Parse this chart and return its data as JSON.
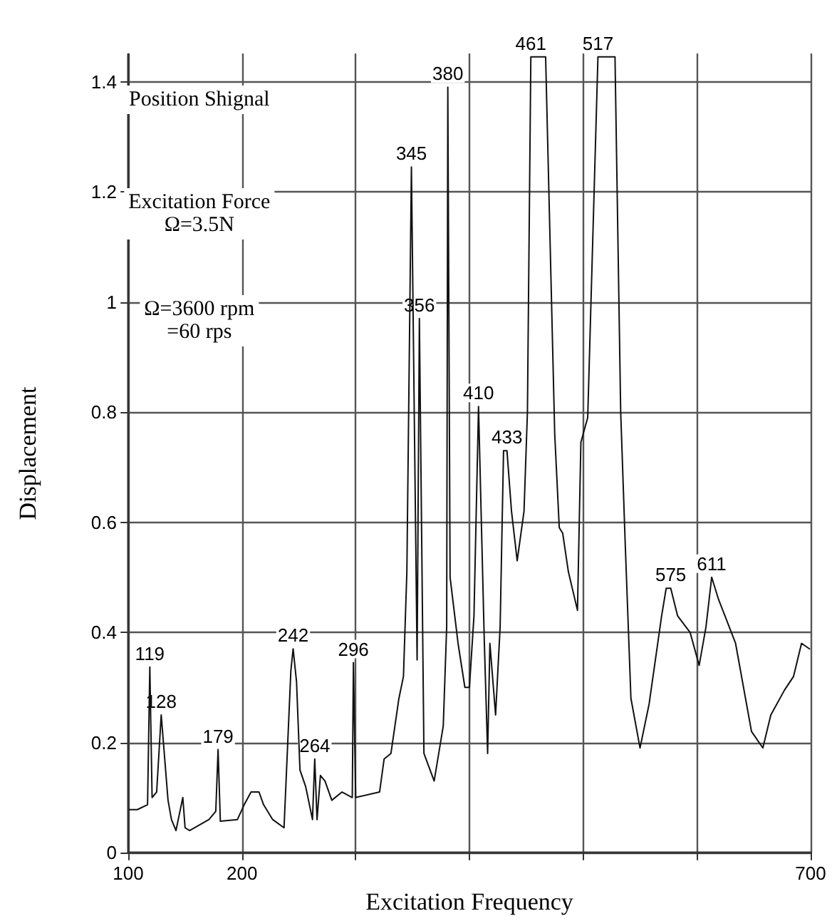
{
  "chart_data": {
    "type": "line",
    "xlabel": "Excitation Frequency",
    "ylabel": "Displacement",
    "xlim": [
      100,
      700
    ],
    "xticks": [
      100,
      200,
      {
        "value": 300,
        "label": null
      },
      {
        "value": 400,
        "label": null
      },
      {
        "value": 500,
        "label": null
      },
      {
        "value": 600,
        "label": null
      },
      700
    ],
    "ylim": [
      0,
      1.45
    ],
    "yticks": [
      0,
      0.2,
      0.4,
      0.6,
      0.8,
      1.0,
      1.2,
      1.4
    ],
    "grid": true,
    "marker": "none",
    "line_style": "solid",
    "series": [
      {
        "color": "#111111",
        "x": [
          101,
          108,
          117,
          119,
          121,
          125,
          129,
          135,
          138,
          142,
          148,
          150,
          154,
          171,
          177,
          179,
          181,
          196,
          202,
          208,
          215,
          219,
          227,
          237,
          243,
          245,
          248,
          251,
          256,
          262,
          264,
          266,
          269,
          273,
          279,
          288,
          297,
          298,
          300,
          321,
          325,
          331,
          338,
          342,
          345,
          349,
          354,
          356,
          360,
          369,
          377,
          380,
          381,
          383,
          390,
          396,
          400,
          404,
          408,
          413,
          416,
          418,
          423,
          427,
          430,
          433,
          437,
          442,
          448,
          451,
          454,
          467,
          475,
          479,
          482,
          487,
          495,
          498,
          504,
          513,
          528,
          533,
          537,
          542,
          550,
          558,
          569,
          573,
          577,
          583,
          594,
          602,
          608,
          613,
          619,
          634,
          648,
          658,
          665,
          677,
          685,
          692,
          699
        ],
        "values": [
          0.078,
          0.078,
          0.087,
          0.337,
          0.1,
          0.11,
          0.25,
          0.095,
          0.06,
          0.04,
          0.1,
          0.045,
          0.04,
          0.06,
          0.075,
          0.187,
          0.057,
          0.06,
          0.087,
          0.11,
          0.11,
          0.087,
          0.06,
          0.045,
          0.33,
          0.37,
          0.31,
          0.15,
          0.12,
          0.06,
          0.17,
          0.06,
          0.14,
          0.13,
          0.095,
          0.11,
          0.1,
          0.345,
          0.1,
          0.11,
          0.17,
          0.18,
          0.28,
          0.32,
          0.51,
          1.245,
          0.35,
          0.97,
          0.18,
          0.13,
          0.23,
          0.41,
          1.39,
          0.5,
          0.38,
          0.3,
          0.3,
          0.43,
          0.81,
          0.39,
          0.18,
          0.38,
          0.25,
          0.41,
          0.73,
          0.73,
          0.62,
          0.53,
          0.62,
          0.8,
          1.445,
          1.445,
          0.76,
          0.59,
          0.58,
          0.51,
          0.44,
          0.745,
          0.79,
          1.445,
          1.445,
          0.8,
          0.56,
          0.28,
          0.19,
          0.27,
          0.43,
          0.48,
          0.48,
          0.43,
          0.4,
          0.34,
          0.41,
          0.5,
          0.46,
          0.38,
          0.22,
          0.19,
          0.25,
          0.295,
          0.32,
          0.38,
          0.37
        ]
      }
    ],
    "annotations": [
      "Position Shignal",
      "Excitation Force\nΩ=3.5N",
      "Ω=3600 rpm\n=60 rps",
      {
        "text": "119",
        "x": 119,
        "y": 0.337
      },
      {
        "text": "128",
        "x": 129,
        "y": 0.25
      },
      {
        "text": "179",
        "x": 179,
        "y": 0.187
      },
      {
        "text": "242",
        "x": 245,
        "y": 0.37
      },
      {
        "text": "264",
        "x": 264,
        "y": 0.17
      },
      {
        "text": "296",
        "x": 298,
        "y": 0.345
      },
      {
        "text": "345",
        "x": 349,
        "y": 1.245
      },
      {
        "text": "356",
        "x": 356,
        "y": 0.97
      },
      {
        "text": "380",
        "x": 381,
        "y": 1.39
      },
      {
        "text": "410",
        "x": 408,
        "y": 0.81
      },
      {
        "text": "433",
        "x": 433,
        "y": 0.73
      },
      {
        "text": "461",
        "x": 454,
        "y": 1.445
      },
      {
        "text": "517",
        "x": 513,
        "y": 1.445
      },
      {
        "text": "575",
        "x": 577,
        "y": 0.48
      },
      {
        "text": "611",
        "x": 613,
        "y": 0.5
      }
    ]
  }
}
